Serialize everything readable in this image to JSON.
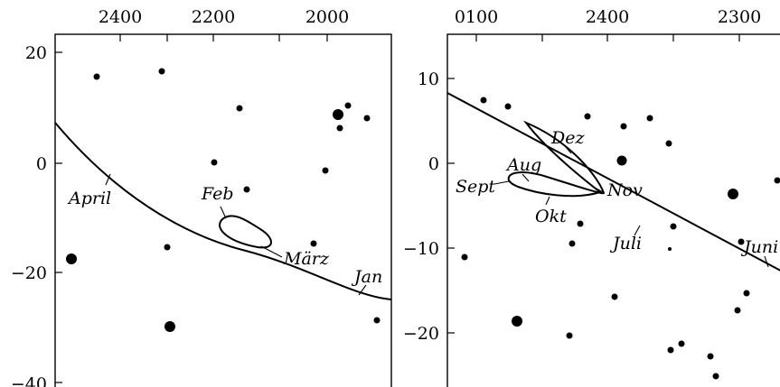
{
  "panels": [
    {
      "id": "left",
      "ra_ticks": [
        "2400",
        "2200",
        "2000"
      ],
      "dec_ticks": [
        "20",
        "0",
        "−20",
        "−40"
      ],
      "labels": {
        "april": "April",
        "feb": "Feb",
        "maerz": "März",
        "jan": "Jan"
      }
    },
    {
      "id": "right",
      "ra_ticks": [
        "0100",
        "2400",
        "2300"
      ],
      "dec_ticks": [
        "10",
        "0",
        "−10",
        "−20"
      ],
      "labels": {
        "dez": "Dez",
        "aug": "Aug",
        "sept": "Sept",
        "nov": "Nov",
        "okt": "Okt",
        "juli": "Juli",
        "juni": "Juni"
      }
    }
  ]
}
